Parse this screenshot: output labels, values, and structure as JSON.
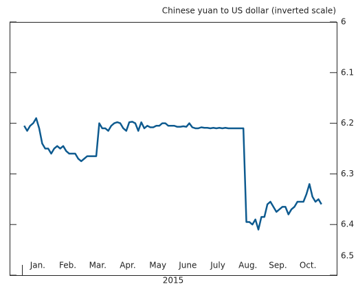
{
  "chart_data": {
    "type": "line",
    "title": "Chinese yuan to US dollar (inverted scale)",
    "x_label": "2015",
    "month_labels": [
      "Jan.",
      "Feb.",
      "Mar.",
      "Apr.",
      "May",
      "June",
      "July",
      "Aug.",
      "Sep.",
      "Oct."
    ],
    "inverted": true,
    "color": "#0d5a8f",
    "ylim": [
      6.0,
      6.5
    ],
    "yticks": [
      6.0,
      6.1,
      6.2,
      6.3,
      6.4,
      6.5
    ],
    "values": [
      6.205,
      6.215,
      6.205,
      6.2,
      6.19,
      6.21,
      6.24,
      6.25,
      6.25,
      6.26,
      6.25,
      6.245,
      6.25,
      6.245,
      6.255,
      6.26,
      6.26,
      6.26,
      6.27,
      6.275,
      6.27,
      6.265,
      6.265,
      6.265,
      6.265,
      6.2,
      6.21,
      6.21,
      6.215,
      6.205,
      6.2,
      6.198,
      6.2,
      6.21,
      6.215,
      6.198,
      6.197,
      6.2,
      6.215,
      6.198,
      6.21,
      6.205,
      6.208,
      6.208,
      6.205,
      6.205,
      6.2,
      6.2,
      6.205,
      6.205,
      6.205,
      6.207,
      6.207,
      6.206,
      6.207,
      6.2,
      6.208,
      6.21,
      6.21,
      6.208,
      6.209,
      6.209,
      6.21,
      6.209,
      6.21,
      6.209,
      6.21,
      6.209,
      6.21,
      6.21,
      6.21,
      6.21,
      6.21,
      6.21,
      6.395,
      6.395,
      6.4,
      6.39,
      6.41,
      6.385,
      6.385,
      6.36,
      6.355,
      6.365,
      6.375,
      6.37,
      6.365,
      6.365,
      6.38,
      6.37,
      6.365,
      6.355,
      6.355,
      6.355,
      6.34,
      6.32,
      6.345,
      6.355,
      6.35,
      6.36
    ]
  }
}
